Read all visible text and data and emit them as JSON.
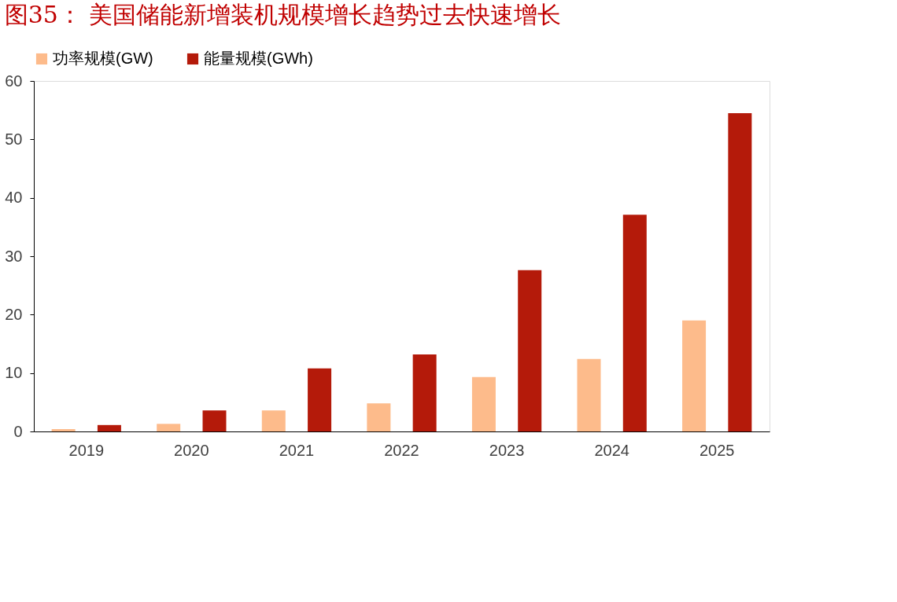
{
  "chart_data": {
    "type": "bar",
    "title": "图35：  美国储能新增装机规模增长趋势过去快速增长",
    "categories": [
      "2019",
      "2020",
      "2021",
      "2022",
      "2023",
      "2024",
      "2025"
    ],
    "series": [
      {
        "name": "功率规模(GW)",
        "color": "#fdbb8b",
        "values": [
          0.4,
          1.3,
          3.6,
          4.8,
          9.3,
          12.4,
          19.0
        ]
      },
      {
        "name": "能量规模(GWh)",
        "color": "#b41a0a",
        "values": [
          1.1,
          3.6,
          10.8,
          13.2,
          27.6,
          37.1,
          54.5
        ]
      }
    ],
    "ylim": [
      0,
      60
    ],
    "yticks": [
      0,
      10,
      20,
      30,
      40,
      50,
      60
    ],
    "grid": false,
    "legend": "top"
  }
}
